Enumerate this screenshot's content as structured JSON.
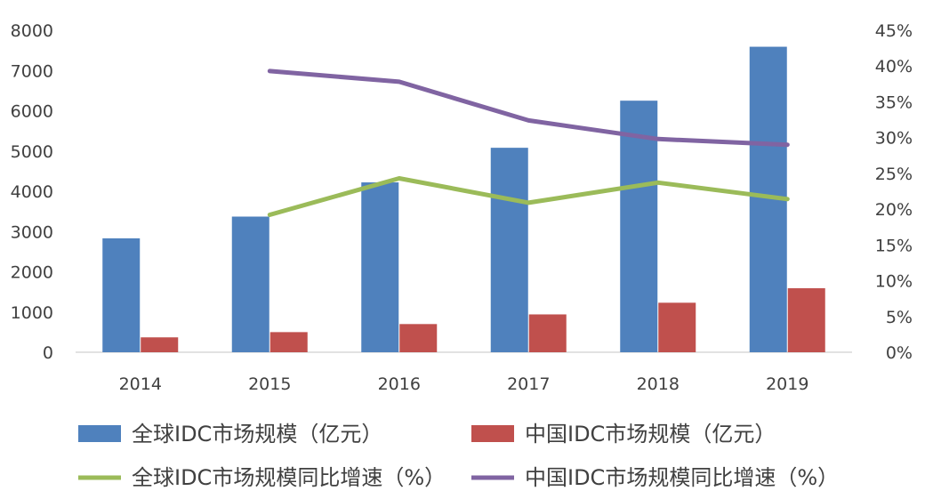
{
  "chart_data": {
    "type": "bar",
    "categories": [
      "2014",
      "2015",
      "2016",
      "2017",
      "2018",
      "2019"
    ],
    "bar_series": [
      {
        "name": "全球IDC市场规模（亿元）",
        "color": "#4F81BD",
        "values": [
          2830,
          3370,
          4220,
          5080,
          6250,
          7590
        ]
      },
      {
        "name": "中国IDC市场规模（亿元）",
        "color": "#C0504D",
        "values": [
          370,
          500,
          700,
          940,
          1230,
          1590
        ]
      }
    ],
    "line_series": [
      {
        "name": "全球IDC市场规模同比增速（%）",
        "color": "#9BBB59",
        "axis": "right",
        "values": [
          null,
          19.2,
          24.3,
          20.9,
          23.7,
          21.4
        ]
      },
      {
        "name": "中国IDC市场规模同比增速（%）",
        "color": "#8064A2",
        "axis": "right",
        "values": [
          null,
          39.3,
          37.8,
          32.4,
          29.8,
          29.0
        ]
      }
    ],
    "y_left": {
      "min": 0,
      "max": 8000,
      "ticks": [
        "0",
        "1000",
        "2000",
        "3000",
        "4000",
        "5000",
        "6000",
        "7000",
        "8000"
      ]
    },
    "y_right": {
      "min": 0,
      "max": 45,
      "ticks": [
        "0%",
        "5%",
        "10%",
        "15%",
        "20%",
        "25%",
        "30%",
        "35%",
        "40%",
        "45%"
      ]
    },
    "grid": false,
    "legend": "bottom"
  }
}
